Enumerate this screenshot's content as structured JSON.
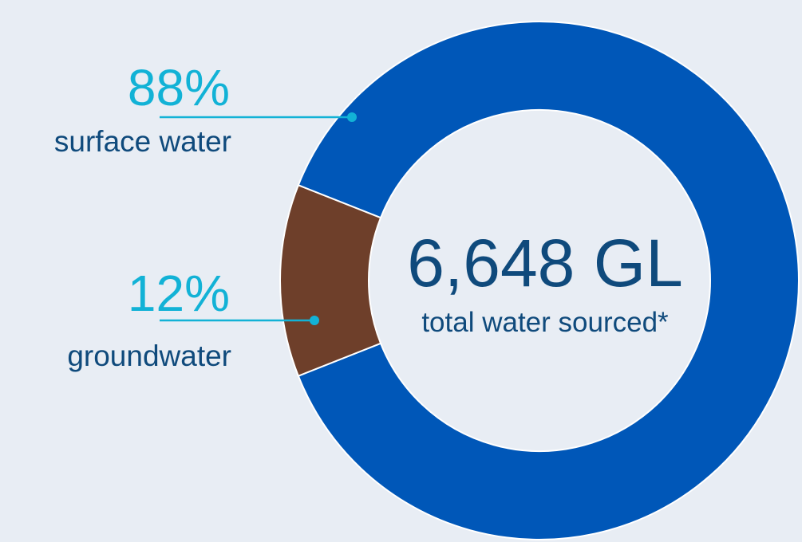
{
  "chart_data": {
    "type": "pie",
    "variant": "donut",
    "slices": [
      {
        "label": "surface water",
        "value_percent": 88,
        "display": "88%",
        "color": "#0057b8"
      },
      {
        "label": "groundwater",
        "value_percent": 12,
        "display": "12%",
        "color": "#6e3f2a"
      }
    ],
    "center": {
      "total": "6,648 GL",
      "caption": "total water sourced*"
    },
    "label_color": "#12b2d6",
    "text_color": "#0f4a7c",
    "background": "#e8edf4",
    "legend": "none"
  }
}
